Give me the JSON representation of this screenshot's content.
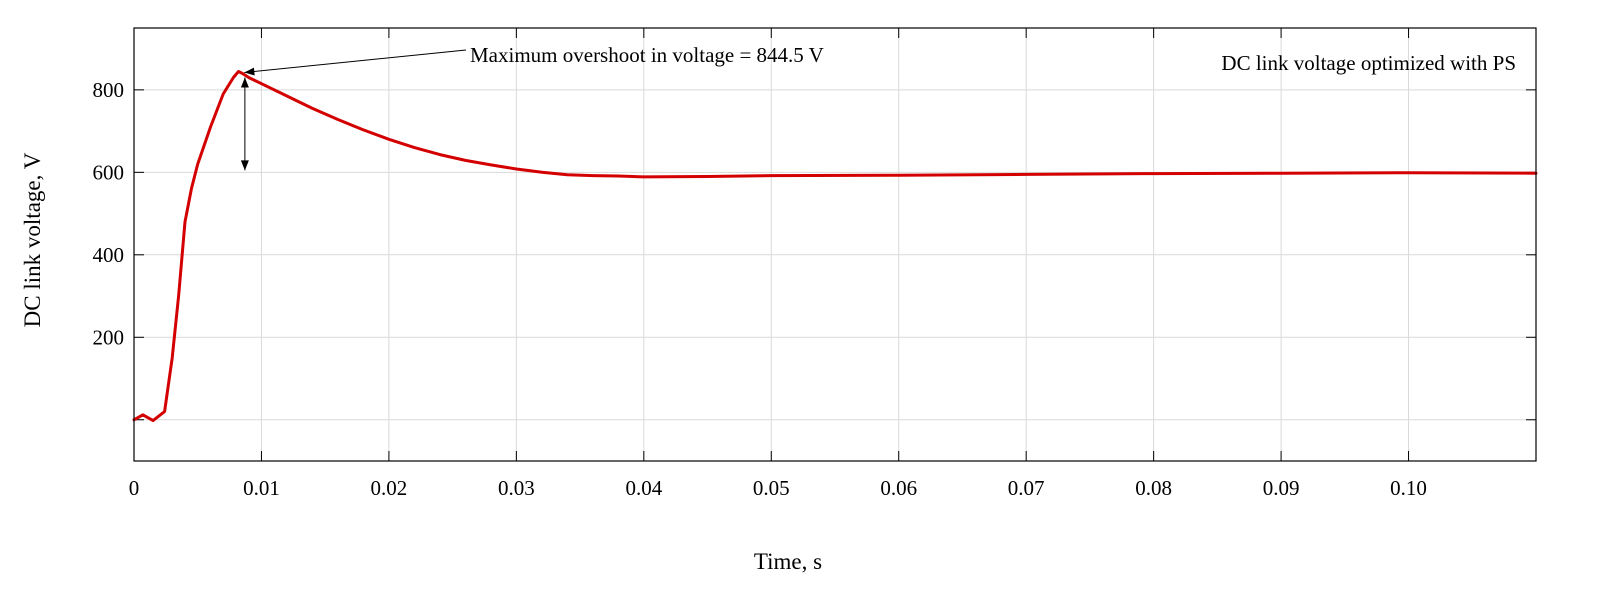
{
  "chart_data": {
    "type": "line",
    "title": "",
    "xlabel": "Time, s",
    "ylabel": "DC link voltage, V",
    "xlim": [
      0,
      0.11
    ],
    "ylim": [
      -100,
      950
    ],
    "x_ticks": [
      0,
      0.01,
      0.02,
      0.03,
      0.04,
      0.05,
      0.06,
      0.07,
      0.08,
      0.09,
      0.1
    ],
    "x_tick_labels": [
      "0",
      "0.01",
      "0.02",
      "0.03",
      "0.04",
      "0.05",
      "0.06",
      "0.07",
      "0.08",
      "0.09",
      "0.10"
    ],
    "y_ticks": [
      0,
      200,
      400,
      600,
      800
    ],
    "y_tick_labels": [
      "",
      "200",
      "400",
      "600",
      "800"
    ],
    "grid": true,
    "series": [
      {
        "name": "",
        "color": "#d40000",
        "x": [
          0,
          0.0007,
          0.0015,
          0.0024,
          0.003,
          0.0035,
          0.004,
          0.0045,
          0.005,
          0.006,
          0.007,
          0.0078,
          0.0082,
          0.0085,
          0.009,
          0.01,
          0.012,
          0.014,
          0.016,
          0.018,
          0.02,
          0.022,
          0.024,
          0.026,
          0.028,
          0.03,
          0.032,
          0.034,
          0.036,
          0.038,
          0.04,
          0.045,
          0.05,
          0.06,
          0.07,
          0.08,
          0.09,
          0.1,
          0.11
        ],
        "y": [
          0,
          12,
          -2,
          20,
          150,
          300,
          480,
          560,
          620,
          710,
          790,
          830,
          844.5,
          840,
          830,
          815,
          785,
          755,
          728,
          703,
          680,
          660,
          643,
          629,
          618,
          608,
          600,
          594,
          592,
          591,
          589,
          590,
          592,
          593,
          595,
          597,
          598,
          599,
          598
        ]
      }
    ],
    "annotations": [
      {
        "text": "Maximum overshoot in voltage = 844.5 V",
        "point_x": 0.0085,
        "point_y": 844.5
      },
      {
        "text": "DC link voltage optimized with PS"
      }
    ],
    "overshoot_arrow": {
      "x": 0.0087,
      "from_y": 844.5,
      "to_y": 600
    }
  }
}
